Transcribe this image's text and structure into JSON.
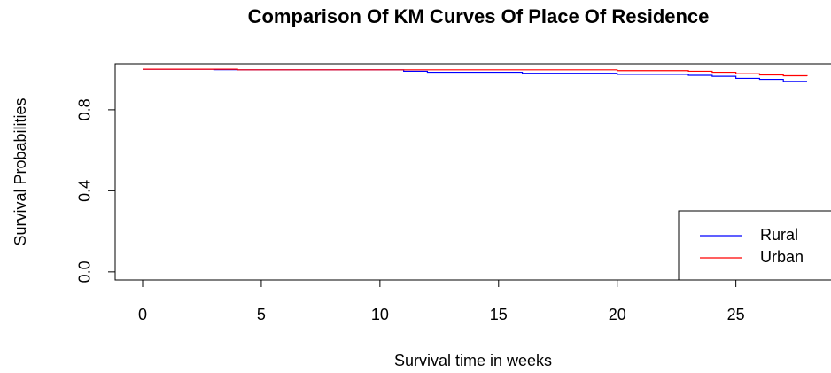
{
  "chart_data": {
    "type": "line",
    "drawstyle": "steps-post",
    "title": "Comparison Of KM Curves Of Place Of Residence",
    "xlabel": "Survival time in weeks",
    "ylabel": "Survival Probabilities",
    "x": [
      0,
      3,
      4,
      11,
      12,
      16,
      20,
      23,
      24,
      25,
      26,
      27,
      28
    ],
    "series": [
      {
        "name": "Rural",
        "color": "#0000ff",
        "values": [
          1,
          0.998,
          0.997,
          0.99,
          0.985,
          0.98,
          0.975,
          0.97,
          0.965,
          0.955,
          0.95,
          0.94,
          0.94
        ]
      },
      {
        "name": "Urban",
        "color": "#ff0000",
        "values": [
          1,
          1,
          0.997,
          0.997,
          0.997,
          0.997,
          0.993,
          0.99,
          0.985,
          0.978,
          0.972,
          0.968,
          0.966
        ]
      }
    ],
    "xlim": [
      -1.12,
      29.12
    ],
    "xticks": [
      0,
      5,
      10,
      15,
      20,
      25
    ],
    "ylim": [
      -0.04,
      1.04
    ],
    "yticks": [
      {
        "value": 0,
        "label": "0.0"
      },
      0.4,
      0.8
    ],
    "grid": false,
    "legend": "bottom-right"
  }
}
